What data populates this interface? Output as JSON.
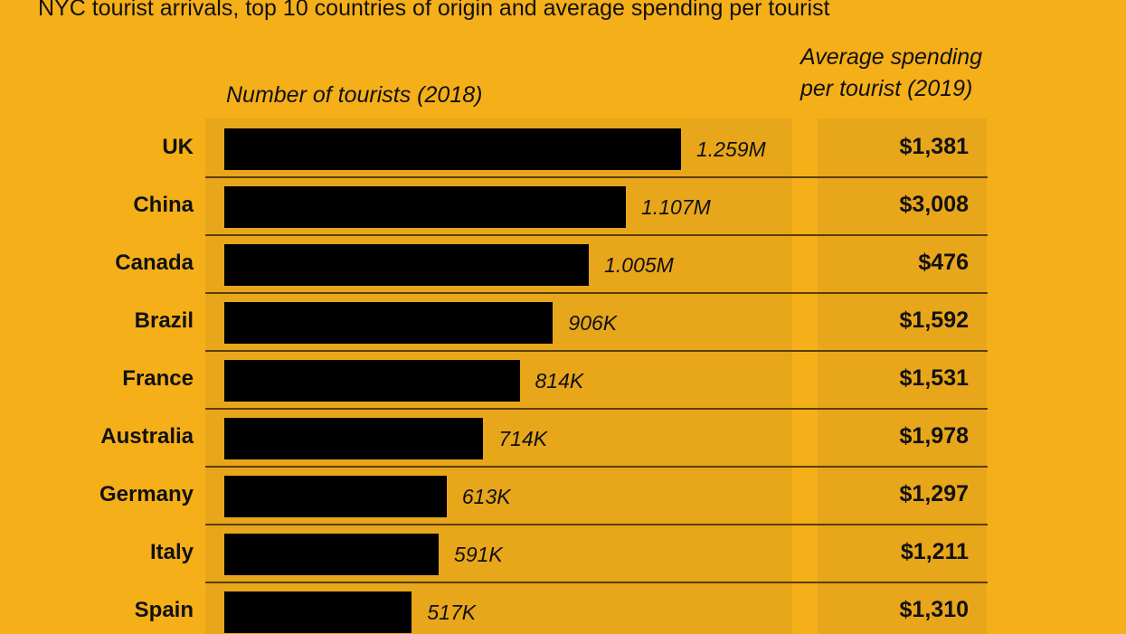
{
  "chart_data": {
    "type": "bar",
    "orientation": "horizontal",
    "title": "NYC tourist arrivals, top 10 countries of origin and average spending per tourist",
    "bar_header": "Number of tourists (2018)",
    "table_header": [
      "Average spending",
      "per tourist (2019)"
    ],
    "categories": [
      "UK",
      "China",
      "Canada",
      "Brazil",
      "France",
      "Australia",
      "Germany",
      "Italy",
      "Spain"
    ],
    "values": [
      1259000,
      1107000,
      1005000,
      906000,
      814000,
      714000,
      613000,
      591000,
      517000
    ],
    "value_labels": [
      "1.259M",
      "1.107M",
      "1.005M",
      "906K",
      "814K",
      "714K",
      "613K",
      "591K",
      "517K"
    ],
    "spending": [
      "$1,381",
      "$3,008",
      "$476",
      "$1,592",
      "$1,531",
      "$1,978",
      "$1,297",
      "$1,211",
      "$1,310"
    ],
    "colors": {
      "background": "#F5AF19",
      "panel": "#E8A61B",
      "bar": "#000000",
      "divider": "#5A3F0A"
    },
    "grid": false
  }
}
